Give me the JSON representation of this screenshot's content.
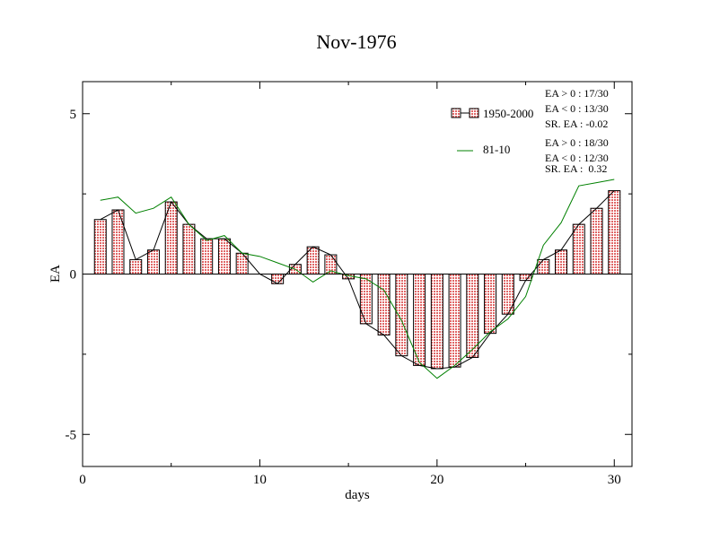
{
  "chart_data": {
    "type": "bar",
    "title": "Nov-1976",
    "xlabel": "days",
    "ylabel": "EA",
    "xlim": [
      0,
      31
    ],
    "ylim": [
      -6,
      6
    ],
    "x_ticks": [
      0,
      10,
      20,
      30
    ],
    "x_tick_labels": [
      "0",
      "10",
      "20",
      "30"
    ],
    "y_ticks": [
      -5,
      0,
      5
    ],
    "y_tick_labels": [
      "-5",
      "0",
      "5"
    ],
    "grid": false,
    "legend_position": "top-right",
    "x": [
      1,
      2,
      3,
      4,
      5,
      6,
      7,
      8,
      9,
      10,
      11,
      12,
      13,
      14,
      15,
      16,
      17,
      18,
      19,
      20,
      21,
      22,
      23,
      24,
      25,
      26,
      27,
      28,
      29,
      30
    ],
    "series": [
      {
        "name": "1950-2000",
        "style": "bar+line",
        "bar_color": "#e06666",
        "line_color": "#000000",
        "values": [
          1.7,
          2.0,
          0.45,
          0.75,
          2.25,
          1.55,
          1.1,
          1.1,
          0.65,
          0.0,
          -0.3,
          0.3,
          0.85,
          0.6,
          -0.15,
          -1.55,
          -1.9,
          -2.55,
          -2.85,
          -2.95,
          -2.9,
          -2.6,
          -1.85,
          -1.25,
          -0.2,
          0.45,
          0.75,
          1.55,
          2.05,
          2.6
        ]
      },
      {
        "name": "81-10",
        "style": "line",
        "line_color": "#008000",
        "values": [
          2.3,
          2.4,
          1.9,
          2.05,
          2.4,
          1.55,
          1.05,
          1.2,
          0.65,
          0.55,
          0.35,
          0.15,
          -0.25,
          0.1,
          -0.05,
          -0.15,
          -0.5,
          -1.45,
          -2.75,
          -3.25,
          -2.85,
          -2.35,
          -1.8,
          -1.4,
          -0.7,
          0.9,
          1.6,
          2.75,
          2.85,
          2.95
        ]
      }
    ],
    "legend_stats": [
      [
        "EA > 0 : 17/30",
        "EA < 0 : 13/30",
        "SR. EA : -0.02"
      ],
      [
        "EA > 0 : 18/30",
        "EA < 0 : 12/30",
        "SR. EA :  0.32"
      ]
    ]
  }
}
